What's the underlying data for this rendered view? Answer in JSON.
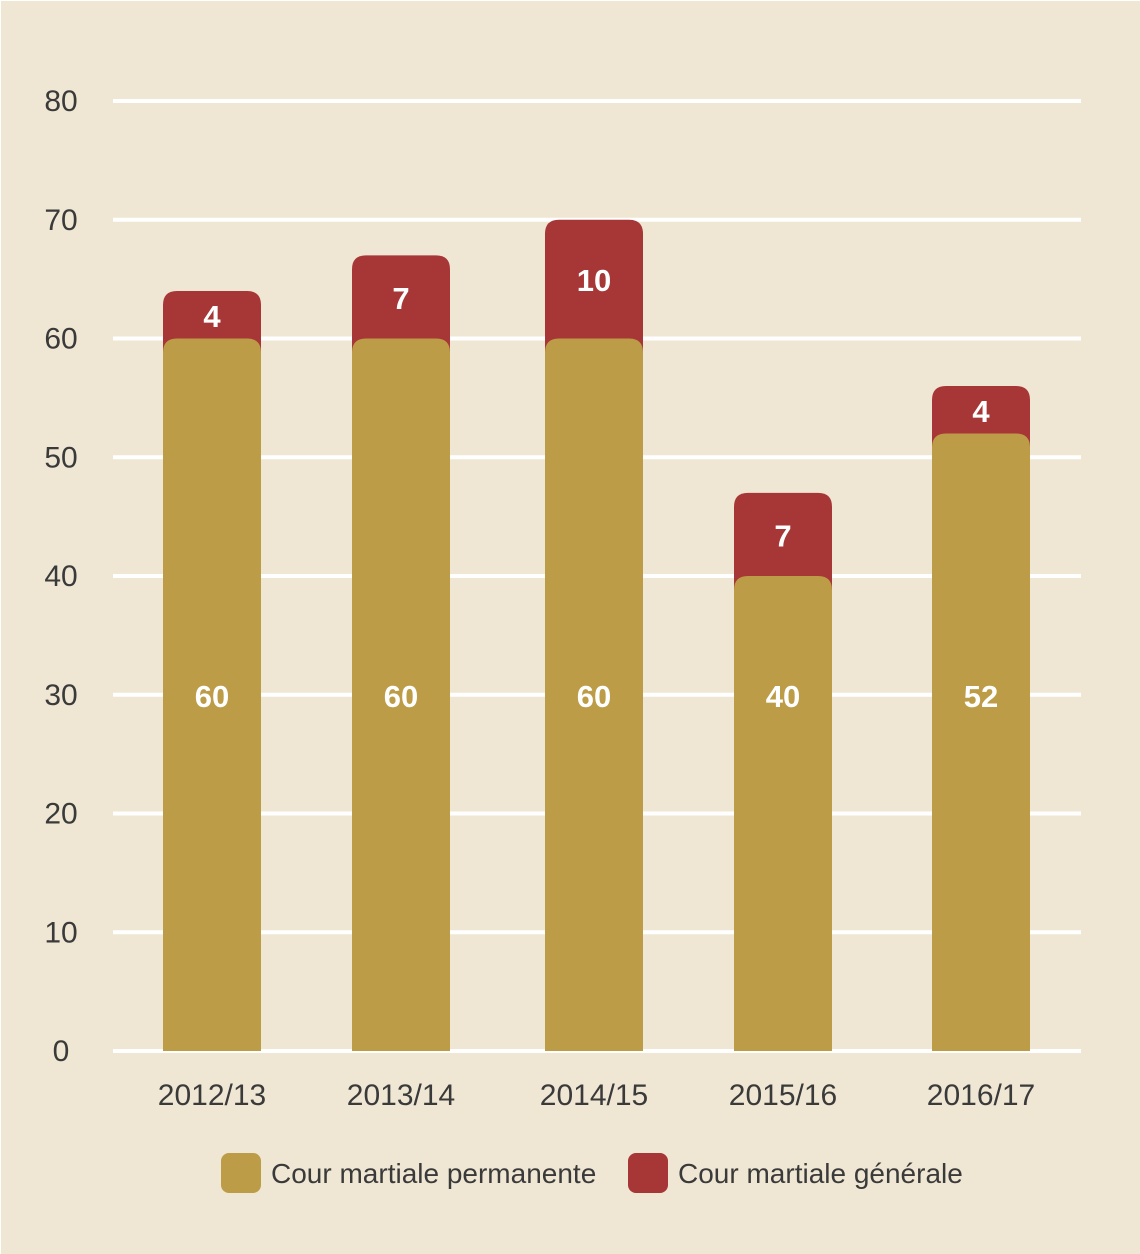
{
  "chart_data": {
    "type": "bar",
    "stacked": true,
    "categories": [
      "2012/13",
      "2013/14",
      "2014/15",
      "2015/16",
      "2016/17"
    ],
    "series": [
      {
        "name": "Cour martiale permanente",
        "values": [
          60,
          60,
          60,
          40,
          52
        ],
        "color": "#bd9c47"
      },
      {
        "name": "Cour martiale générale",
        "values": [
          4,
          7,
          10,
          7,
          4
        ],
        "color": "#a73636"
      }
    ],
    "ylim": [
      0,
      80
    ],
    "yticks": [
      0,
      10,
      20,
      30,
      40,
      50,
      60,
      70,
      80
    ],
    "grid": true,
    "legend_position": "bottom",
    "background_color": "#efe7d3",
    "grid_color": "#ffffff",
    "axis_text_color": "#3a3a3a",
    "data_label_color": "#ffffff"
  }
}
